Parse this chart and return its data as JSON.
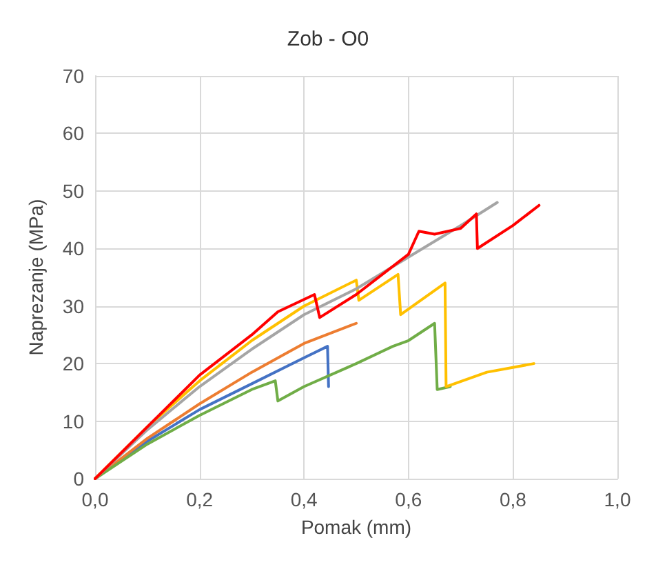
{
  "chart_data": {
    "type": "line",
    "title": "Zob - O0",
    "xlabel": "Pomak (mm)",
    "ylabel": "Naprezanje (MPa)",
    "xlim": [
      0,
      1
    ],
    "xticks": [
      {
        "value": 0,
        "label": "0,0"
      },
      {
        "value": 0.2,
        "label": "0,2"
      },
      {
        "value": 0.4,
        "label": "0,4"
      },
      {
        "value": 0.6,
        "label": "0,6"
      },
      {
        "value": 0.8,
        "label": "0,8"
      },
      {
        "value": 1,
        "label": "1,0"
      }
    ],
    "ylim": [
      0,
      70
    ],
    "yticks": [
      0,
      10,
      20,
      30,
      40,
      50,
      60,
      70
    ],
    "grid": true,
    "marker": "none",
    "series": [
      {
        "color": "#4472c4",
        "x": [
          0,
          0.1,
          0.2,
          0.3,
          0.4,
          0.445,
          0.447
        ],
        "values": [
          0,
          6.5,
          12,
          16.5,
          21,
          23,
          16
        ]
      },
      {
        "color": "#ed7d31",
        "x": [
          0,
          0.1,
          0.2,
          0.3,
          0.4,
          0.5
        ],
        "values": [
          0,
          7,
          13,
          18.5,
          23.5,
          27
        ]
      },
      {
        "color": "#70ad47",
        "x": [
          0,
          0.1,
          0.2,
          0.3,
          0.345,
          0.35,
          0.4,
          0.5,
          0.57,
          0.6,
          0.65,
          0.655,
          0.68
        ],
        "values": [
          0,
          6,
          11,
          15.5,
          17,
          13.5,
          16,
          20,
          23,
          24,
          27,
          15.5,
          16
        ]
      },
      {
        "color": "#ffc000",
        "x": [
          0,
          0.1,
          0.2,
          0.3,
          0.4,
          0.5,
          0.505,
          0.58,
          0.585,
          0.67,
          0.672,
          0.75,
          0.84
        ],
        "values": [
          0,
          9,
          17,
          24,
          30,
          34.5,
          31,
          35.5,
          28.5,
          34,
          16,
          18.5,
          20
        ]
      },
      {
        "color": "#a5a5a5",
        "x": [
          0,
          0.1,
          0.2,
          0.3,
          0.4,
          0.5,
          0.6,
          0.7,
          0.77
        ],
        "values": [
          0,
          8.5,
          16,
          22.5,
          28.5,
          33,
          38.5,
          44,
          48
        ]
      },
      {
        "color": "#ff0000",
        "x": [
          0,
          0.1,
          0.2,
          0.3,
          0.35,
          0.42,
          0.43,
          0.5,
          0.6,
          0.62,
          0.65,
          0.7,
          0.73,
          0.732,
          0.8,
          0.85
        ],
        "values": [
          0,
          9,
          18,
          25,
          29,
          32,
          28,
          32,
          39,
          43,
          42.5,
          43.5,
          46,
          40,
          44,
          47.5
        ]
      }
    ]
  }
}
